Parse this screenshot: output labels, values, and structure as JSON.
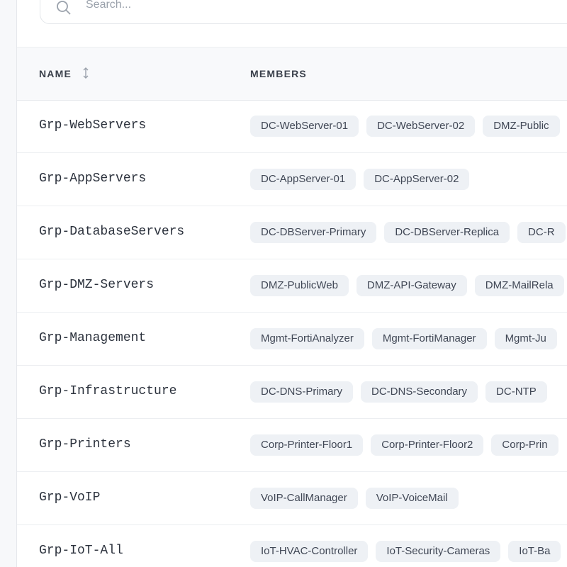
{
  "search": {
    "placeholder": "Search..."
  },
  "table": {
    "columns": [
      "NAME",
      "MEMBERS"
    ],
    "rows": [
      {
        "name": "Grp-WebServers",
        "members": [
          "DC-WebServer-01",
          "DC-WebServer-02",
          "DMZ-Public"
        ]
      },
      {
        "name": "Grp-AppServers",
        "members": [
          "DC-AppServer-01",
          "DC-AppServer-02"
        ]
      },
      {
        "name": "Grp-DatabaseServers",
        "members": [
          "DC-DBServer-Primary",
          "DC-DBServer-Replica",
          "DC-R"
        ]
      },
      {
        "name": "Grp-DMZ-Servers",
        "members": [
          "DMZ-PublicWeb",
          "DMZ-API-Gateway",
          "DMZ-MailRela"
        ]
      },
      {
        "name": "Grp-Management",
        "members": [
          "Mgmt-FortiAnalyzer",
          "Mgmt-FortiManager",
          "Mgmt-Ju"
        ]
      },
      {
        "name": "Grp-Infrastructure",
        "members": [
          "DC-DNS-Primary",
          "DC-DNS-Secondary",
          "DC-NTP"
        ]
      },
      {
        "name": "Grp-Printers",
        "members": [
          "Corp-Printer-Floor1",
          "Corp-Printer-Floor2",
          "Corp-Prin"
        ]
      },
      {
        "name": "Grp-VoIP",
        "members": [
          "VoIP-CallManager",
          "VoIP-VoiceMail"
        ]
      },
      {
        "name": "Grp-IoT-All",
        "members": [
          "IoT-HVAC-Controller",
          "IoT-Security-Cameras",
          "IoT-Ba"
        ]
      }
    ]
  }
}
